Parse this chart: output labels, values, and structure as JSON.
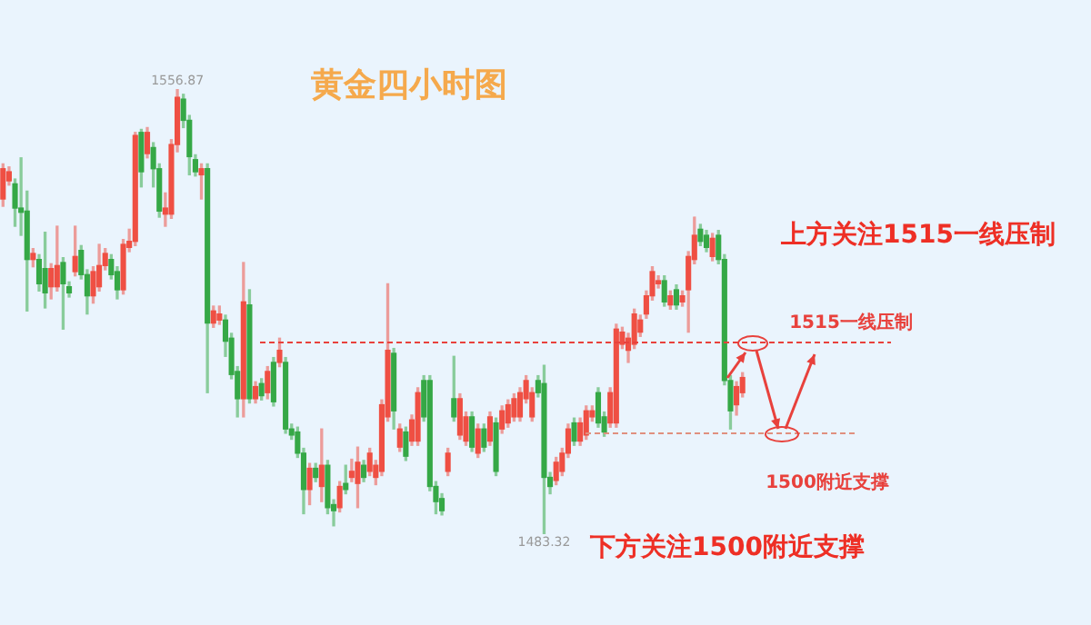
{
  "chart_data": {
    "type": "candlestick",
    "title": "黄金四小时图",
    "categories": [
      null,
      null,
      null,
      null,
      null,
      null,
      null,
      null,
      null,
      null,
      null,
      null,
      null,
      null,
      null,
      null,
      null,
      null,
      null,
      null,
      null,
      null,
      null,
      null,
      null,
      null,
      null,
      null,
      null,
      null,
      null,
      null,
      null,
      null,
      null,
      null,
      null,
      null,
      null,
      null,
      null,
      null,
      null,
      null,
      null,
      null,
      null,
      null,
      null,
      null,
      null,
      null,
      null,
      null,
      null,
      null,
      null,
      null,
      null,
      null,
      null,
      null,
      null,
      null,
      null,
      null,
      null,
      null,
      null,
      null,
      null,
      null,
      null,
      null,
      null,
      null,
      null,
      null,
      null,
      null,
      null,
      null,
      null,
      null,
      null,
      null,
      null,
      null,
      null,
      null,
      null,
      null,
      null,
      null,
      null,
      null,
      null,
      null,
      null,
      null,
      null,
      null,
      null,
      null,
      null,
      null,
      null,
      null,
      null,
      null,
      null,
      null,
      null,
      null,
      null,
      null,
      null,
      null,
      null,
      null,
      null,
      null,
      null,
      null
    ],
    "ohlc": [
      [
        1538.7,
        1544.5,
        1537.5,
        1543.7
      ],
      [
        1541.7,
        1544,
        1541,
        1543.2
      ],
      [
        1541.2,
        1542,
        1534.2,
        1537.2
      ],
      [
        1537.2,
        1545.5,
        1532.7,
        1536.5
      ],
      [
        1536.7,
        1540,
        1520.2,
        1528.7
      ],
      [
        1528.7,
        1530.5,
        1527.5,
        1529.7
      ],
      [
        1528.7,
        1529.5,
        1523.5,
        1524.7
      ],
      [
        1527.2,
        1533.2,
        1520.7,
        1523.2
      ],
      [
        1524.2,
        1528,
        1522.2,
        1527.2
      ],
      [
        1524.2,
        1534.2,
        1523.5,
        1527.7
      ],
      [
        1528.2,
        1529,
        1517.2,
        1524.7
      ],
      [
        1524.2,
        1525,
        1522.5,
        1523.2
      ],
      [
        1526.7,
        1534.2,
        1526,
        1529.2
      ],
      [
        1530.2,
        1531,
        1525.5,
        1526.2
      ],
      [
        1526.2,
        1527,
        1519.7,
        1522.7
      ],
      [
        1522.7,
        1527.5,
        1521.5,
        1526.7
      ],
      [
        1524.2,
        1531.2,
        1523.5,
        1527.7
      ],
      [
        1527.7,
        1530.5,
        1527,
        1529.7
      ],
      [
        1528.7,
        1529.5,
        1525.5,
        1526.2
      ],
      [
        1526.7,
        1527.5,
        1522.2,
        1523.7
      ],
      [
        1523.7,
        1532,
        1523,
        1531.2
      ],
      [
        1530.7,
        1533.7,
        1530,
        1531.7
      ],
      [
        1531.7,
        1549.7,
        1531,
        1549.2
      ],
      [
        1549.7,
        1550.2,
        1540.7,
        1543.2
      ],
      [
        1546.2,
        1550.5,
        1545.5,
        1549.7
      ],
      [
        1547.2,
        1548,
        1540.7,
        1543.7
      ],
      [
        1543.7,
        1544.5,
        1535.7,
        1536.7
      ],
      [
        1536.2,
        1539.7,
        1534.2,
        1537.2
      ],
      [
        1536.2,
        1548.5,
        1535.5,
        1547.7
      ],
      [
        1547.7,
        1556.87,
        1546.5,
        1555.5
      ],
      [
        1555.2,
        1556,
        1550.5,
        1551.7
      ],
      [
        1551.7,
        1552.5,
        1542.7,
        1545.7
      ],
      [
        1545.2,
        1546,
        1542.5,
        1543.2
      ],
      [
        1542.7,
        1544.5,
        1538.7,
        1543.7
      ],
      [
        1543.7,
        1544.5,
        1506.7,
        1518.2
      ],
      [
        1518.2,
        1521,
        1517.5,
        1520.2
      ],
      [
        1518.7,
        1521,
        1518,
        1519.7
      ],
      [
        1518.7,
        1519.5,
        1512.7,
        1515.2
      ],
      [
        1515.7,
        1516.5,
        1509,
        1509.7
      ],
      [
        1510.2,
        1511,
        1502.7,
        1505.7
      ],
      [
        1505.7,
        1528.2,
        1502.7,
        1521.7
      ],
      [
        1521.2,
        1523.7,
        1505,
        1505.7
      ],
      [
        1505.7,
        1508.5,
        1505,
        1507.7
      ],
      [
        1508.2,
        1509,
        1505.5,
        1506.2
      ],
      [
        1506.7,
        1511,
        1505.7,
        1510.2
      ],
      [
        1511.7,
        1512.5,
        1504.5,
        1505.2
      ],
      [
        1511.7,
        1515.7,
        1511,
        1513.7
      ],
      [
        1511.7,
        1512.5,
        1500,
        1500.7
      ],
      [
        1500.7,
        1501.5,
        1499,
        1499.7
      ],
      [
        1500.2,
        1501,
        1496,
        1496.7
      ],
      [
        1496.7,
        1497.5,
        1486.7,
        1490.7
      ],
      [
        1490.7,
        1495,
        1488.2,
        1494.2
      ],
      [
        1494.2,
        1495,
        1492,
        1492.7
      ],
      [
        1491.2,
        1500.7,
        1488.7,
        1494.7
      ],
      [
        1494.7,
        1495.5,
        1486.7,
        1487.7
      ],
      [
        1488.2,
        1489,
        1484.7,
        1487.2
      ],
      [
        1487.7,
        1492,
        1487,
        1491.2
      ],
      [
        1491.7,
        1494.7,
        1490,
        1490.7
      ],
      [
        1492.7,
        1495.7,
        1492,
        1493.7
      ],
      [
        1491.7,
        1497.7,
        1487.7,
        1495.2
      ],
      [
        1494.7,
        1495.5,
        1492,
        1492.7
      ],
      [
        1493.7,
        1497.5,
        1493,
        1496.7
      ],
      [
        1492.7,
        1495.5,
        1491.5,
        1494.7
      ],
      [
        1493.7,
        1505.5,
        1493,
        1504.7
      ],
      [
        1502.7,
        1524.7,
        1502,
        1513.7
      ],
      [
        1513.2,
        1514,
        1500.7,
        1503.7
      ],
      [
        1497.7,
        1501.5,
        1497,
        1500.7
      ],
      [
        1500.2,
        1501,
        1495.5,
        1496.2
      ],
      [
        1498.7,
        1503,
        1498,
        1502.2
      ],
      [
        1498.7,
        1507.5,
        1498,
        1506.7
      ],
      [
        1508.7,
        1509.5,
        1502,
        1502.7
      ],
      [
        1508.7,
        1509.5,
        1490.5,
        1491.2
      ],
      [
        1491.2,
        1492,
        1486.7,
        1488.7
      ],
      [
        1489.2,
        1490,
        1486.5,
        1487.2
      ],
      [
        1493.7,
        1497.5,
        1493,
        1496.7
      ],
      [
        1505.7,
        1512.7,
        1502,
        1502.7
      ],
      [
        1499.7,
        1506.5,
        1499,
        1505.7
      ],
      [
        1498.7,
        1503.5,
        1498,
        1502.7
      ],
      [
        1502.7,
        1503.5,
        1497,
        1497.7
      ],
      [
        1496.7,
        1501.5,
        1496,
        1500.7
      ],
      [
        1500.7,
        1501.5,
        1497,
        1497.7
      ],
      [
        1498.7,
        1503.5,
        1498,
        1502.7
      ],
      [
        1501.7,
        1502.5,
        1493,
        1493.7
      ],
      [
        1500.7,
        1504.5,
        1500,
        1503.7
      ],
      [
        1501.7,
        1505.5,
        1501,
        1504.7
      ],
      [
        1502.7,
        1506.5,
        1502,
        1505.7
      ],
      [
        1502.7,
        1507.5,
        1502,
        1506.7
      ],
      [
        1505.7,
        1509.5,
        1505,
        1508.7
      ],
      [
        1502.7,
        1507.5,
        1502,
        1506.7
      ],
      [
        1508.7,
        1509.5,
        1506,
        1506.7
      ],
      [
        1508.2,
        1511.2,
        1483.32,
        1492.7
      ],
      [
        1492.7,
        1493.5,
        1490,
        1491.2
      ],
      [
        1492.2,
        1496,
        1491.5,
        1495.2
      ],
      [
        1493.7,
        1497.5,
        1493,
        1496.7
      ],
      [
        1496.7,
        1501.5,
        1496,
        1500.7
      ],
      [
        1501.7,
        1502.5,
        1498,
        1498.7
      ],
      [
        1498.7,
        1502.5,
        1498,
        1501.7
      ],
      [
        1499.7,
        1504.5,
        1499,
        1503.7
      ],
      [
        1502.7,
        1504.5,
        1502,
        1503.7
      ],
      [
        1506.7,
        1507.5,
        1501,
        1501.7
      ],
      [
        1502.7,
        1503.5,
        1499.5,
        1500.2
      ],
      [
        1501.7,
        1507.5,
        1501,
        1506.7
      ],
      [
        1501.7,
        1518,
        1501,
        1517.2
      ],
      [
        1514.7,
        1517.5,
        1514,
        1516.7
      ],
      [
        1513.7,
        1516.5,
        1511.7,
        1515.7
      ],
      [
        1514.7,
        1520.5,
        1514,
        1519.7
      ],
      [
        1516.7,
        1519.5,
        1516,
        1518.7
      ],
      [
        1519.7,
        1523.5,
        1519,
        1522.7
      ],
      [
        1522.7,
        1527.5,
        1522,
        1526.7
      ],
      [
        1524.7,
        1526,
        1524,
        1525.2
      ],
      [
        1525.2,
        1526,
        1521,
        1521.7
      ],
      [
        1521.2,
        1523.5,
        1520.5,
        1522.7
      ],
      [
        1523.7,
        1524.5,
        1520.5,
        1521.2
      ],
      [
        1521.7,
        1523.5,
        1521,
        1522.7
      ],
      [
        1523.7,
        1530,
        1516.7,
        1529.2
      ],
      [
        1528.7,
        1535.7,
        1528,
        1532.7
      ],
      [
        1533.7,
        1534.5,
        1531,
        1531.7
      ],
      [
        1532.7,
        1533.5,
        1530,
        1530.7
      ],
      [
        1529.2,
        1533,
        1528.5,
        1532.2
      ],
      [
        1532.7,
        1533.5,
        1528,
        1528.7
      ],
      [
        1528.7,
        1529.5,
        1508,
        1508.7
      ],
      [
        1508.7,
        1509.5,
        1500.7,
        1503.7
      ],
      [
        1504.7,
        1508.5,
        1503,
        1507.7
      ],
      [
        1506.7,
        1510,
        1506,
        1509.2
      ]
    ],
    "ref_lines": [
      {
        "axis": "y",
        "value": 1515,
        "label": "1515一线压制",
        "color": "#e8413c",
        "line_style": "dashed"
      },
      {
        "axis": "y",
        "value": 1500,
        "label": "1500附近支撑",
        "color": "#e0907f",
        "line_style": "dashed"
      }
    ],
    "annotations": [
      {
        "text": "1556.87",
        "y": 1556.87
      },
      {
        "text": "1483.32",
        "y": 1483.32
      },
      "上方关注1515一线压制",
      "下方关注1500附近支撑"
    ]
  }
}
